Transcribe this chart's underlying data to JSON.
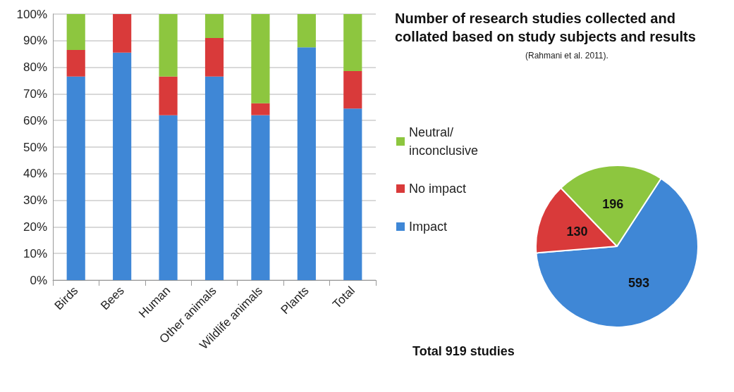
{
  "chart_data": [
    {
      "type": "bar",
      "stacked": true,
      "categories": [
        "Birds",
        "Bees",
        "Human",
        "Other animals",
        "Wildlife animals",
        "Plants",
        "Total"
      ],
      "series": [
        {
          "color": "#3f87d6",
          "values": [
            76.5,
            85.5,
            62,
            76.5,
            62,
            87.5,
            64.5
          ]
        },
        {
          "color": "#d93a3a",
          "values": [
            10,
            14.5,
            14.5,
            14.5,
            4.5,
            0,
            14.1
          ]
        },
        {
          "color": "#8dc63f",
          "values": [
            13.5,
            0,
            23.5,
            9,
            33.5,
            12.5,
            21.4
          ]
        }
      ],
      "ylim": [
        0,
        100
      ],
      "yticks": [
        {
          "value": 0,
          "label": "0%"
        },
        {
          "value": 10,
          "label": "10%"
        },
        {
          "value": 20,
          "label": "20%"
        },
        {
          "value": 30,
          "label": "30%"
        },
        {
          "value": 40,
          "label": "40%"
        },
        {
          "value": 50,
          "label": "50%"
        },
        {
          "value": 60,
          "label": "60%"
        },
        {
          "value": 70,
          "label": "70%"
        },
        {
          "value": 80,
          "label": "80%"
        },
        {
          "value": 90,
          "label": "90%"
        },
        {
          "value": 100,
          "label": "100%"
        }
      ],
      "grid": "y",
      "legend": false
    },
    {
      "type": "pie",
      "title": "Number of research studies collected and collated based on study subjects and results",
      "subtitle": "(Rahmani et al. 2011).",
      "categories": [
        "Impact",
        "No impact",
        "Neutral/ inconclusive"
      ],
      "values": [
        593,
        130,
        196
      ],
      "colors": [
        "#3f87d6",
        "#d93a3a",
        "#8dc63f"
      ],
      "data_labels": true,
      "legend": "left",
      "annotations": [
        "Total 919 studies"
      ]
    }
  ]
}
